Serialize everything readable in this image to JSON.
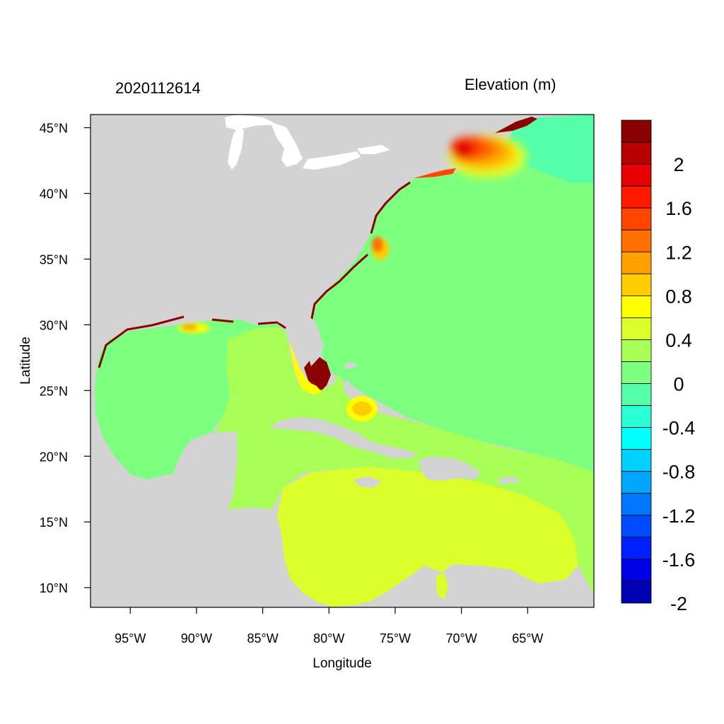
{
  "header": {
    "date_code": "2020112614",
    "variable_label": "Elevation (m)"
  },
  "axes": {
    "xlabel": "Longitude",
    "ylabel": "Latitude",
    "lon_ticks": [
      "95°W",
      "90°W",
      "85°W",
      "80°W",
      "75°W",
      "70°W",
      "65°W"
    ],
    "lat_ticks": [
      "45°N",
      "40°N",
      "35°N",
      "30°N",
      "25°N",
      "20°N",
      "15°N",
      "10°N"
    ]
  },
  "map_extent": {
    "lon": [
      -98,
      -60
    ],
    "lat": [
      8.5,
      46
    ]
  },
  "colorbar": {
    "labels": [
      "2",
      "1.6",
      "1.2",
      "0.8",
      "0.4",
      "0",
      "-0.4",
      "-0.8",
      "-1.2",
      "-1.6",
      "-2"
    ],
    "colors": [
      "#8b0000",
      "#b90000",
      "#e60000",
      "#ff1a00",
      "#ff4500",
      "#ff7000",
      "#ff9f00",
      "#ffcd00",
      "#ffff00",
      "#daff2a",
      "#a8ff55",
      "#7dff80",
      "#55ffaa",
      "#2affd5",
      "#00ffff",
      "#00d2ff",
      "#00a5ff",
      "#0077ff",
      "#004bff",
      "#0021ff",
      "#0000e6",
      "#0000b4"
    ]
  },
  "palette": {
    "land": "#d3d3d3",
    "water": "#ffffff",
    "background": "#ffffff"
  }
}
